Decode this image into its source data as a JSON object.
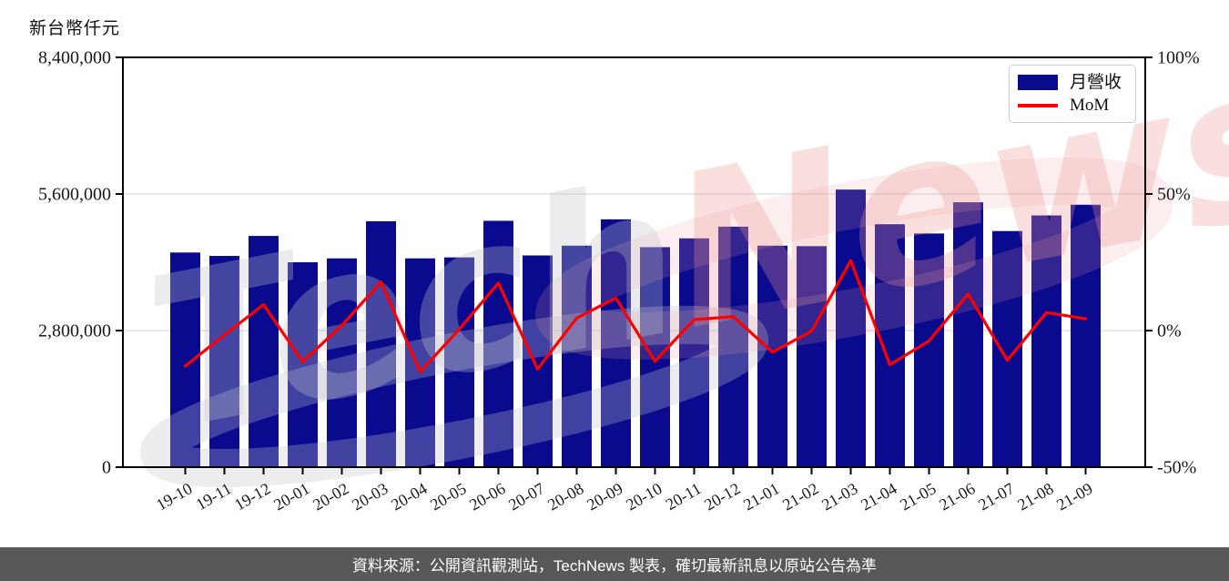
{
  "watermark": {
    "text_gray": "Tech",
    "text_pink": "News"
  },
  "legend": {
    "items": [
      {
        "label": "月營收",
        "type": "bar",
        "color": "#0a0a8e"
      },
      {
        "label": "MoM",
        "type": "line",
        "color": "#ff0000"
      }
    ]
  },
  "footer": {
    "text": "資料來源：公開資訊觀測站，TechNews 製表，確切最新訊息以原站公告為準",
    "background": "#58585a"
  },
  "chart_data": {
    "type": "bar+line",
    "title": "新台幣仟元",
    "categories": [
      "19-10",
      "19-11",
      "19-12",
      "20-01",
      "20-02",
      "20-03",
      "20-04",
      "20-05",
      "20-06",
      "20-07",
      "20-08",
      "20-09",
      "20-10",
      "20-11",
      "20-12",
      "21-01",
      "21-02",
      "21-03",
      "21-04",
      "21-05",
      "21-06",
      "21-07",
      "21-08",
      "21-09"
    ],
    "series": [
      {
        "name": "月營收",
        "type": "bar",
        "yaxis": "left",
        "color": "#0a0a8e",
        "values": [
          4400000,
          4330000,
          4740000,
          4200000,
          4280000,
          5040000,
          4280000,
          4300000,
          5050000,
          4340000,
          4540000,
          5080000,
          4510000,
          4690000,
          4930000,
          4540000,
          4530000,
          5690000,
          4980000,
          4790000,
          5430000,
          4840000,
          5160000,
          5380000
        ]
      },
      {
        "name": "MoM",
        "type": "line",
        "yaxis": "right",
        "color": "#ff0000",
        "values_percent": [
          -13.0,
          -1.6,
          9.5,
          -11.4,
          1.9,
          17.8,
          -15.1,
          0.5,
          17.4,
          -14.1,
          4.6,
          11.9,
          -11.2,
          4.0,
          5.1,
          -7.9,
          -0.2,
          25.6,
          -12.5,
          -3.8,
          13.4,
          -10.9,
          6.6,
          4.3
        ]
      }
    ],
    "left_axis": {
      "title": "新台幣仟元",
      "range": [
        0,
        8400000
      ],
      "ticks": [
        {
          "value": 0,
          "label": "0"
        },
        {
          "value": 2800000,
          "label": "2,800,000"
        },
        {
          "value": 5600000,
          "label": "5,600,000"
        },
        {
          "value": 8400000,
          "label": "8,400,000"
        }
      ]
    },
    "right_axis": {
      "range": [
        -50,
        100
      ],
      "ticks": [
        {
          "value": -50,
          "label": "-50%"
        },
        {
          "value": 0,
          "label": "0%"
        },
        {
          "value": 50,
          "label": "50%"
        },
        {
          "value": 100,
          "label": "100%"
        }
      ]
    },
    "grid": true,
    "legend_position": "top-right"
  }
}
